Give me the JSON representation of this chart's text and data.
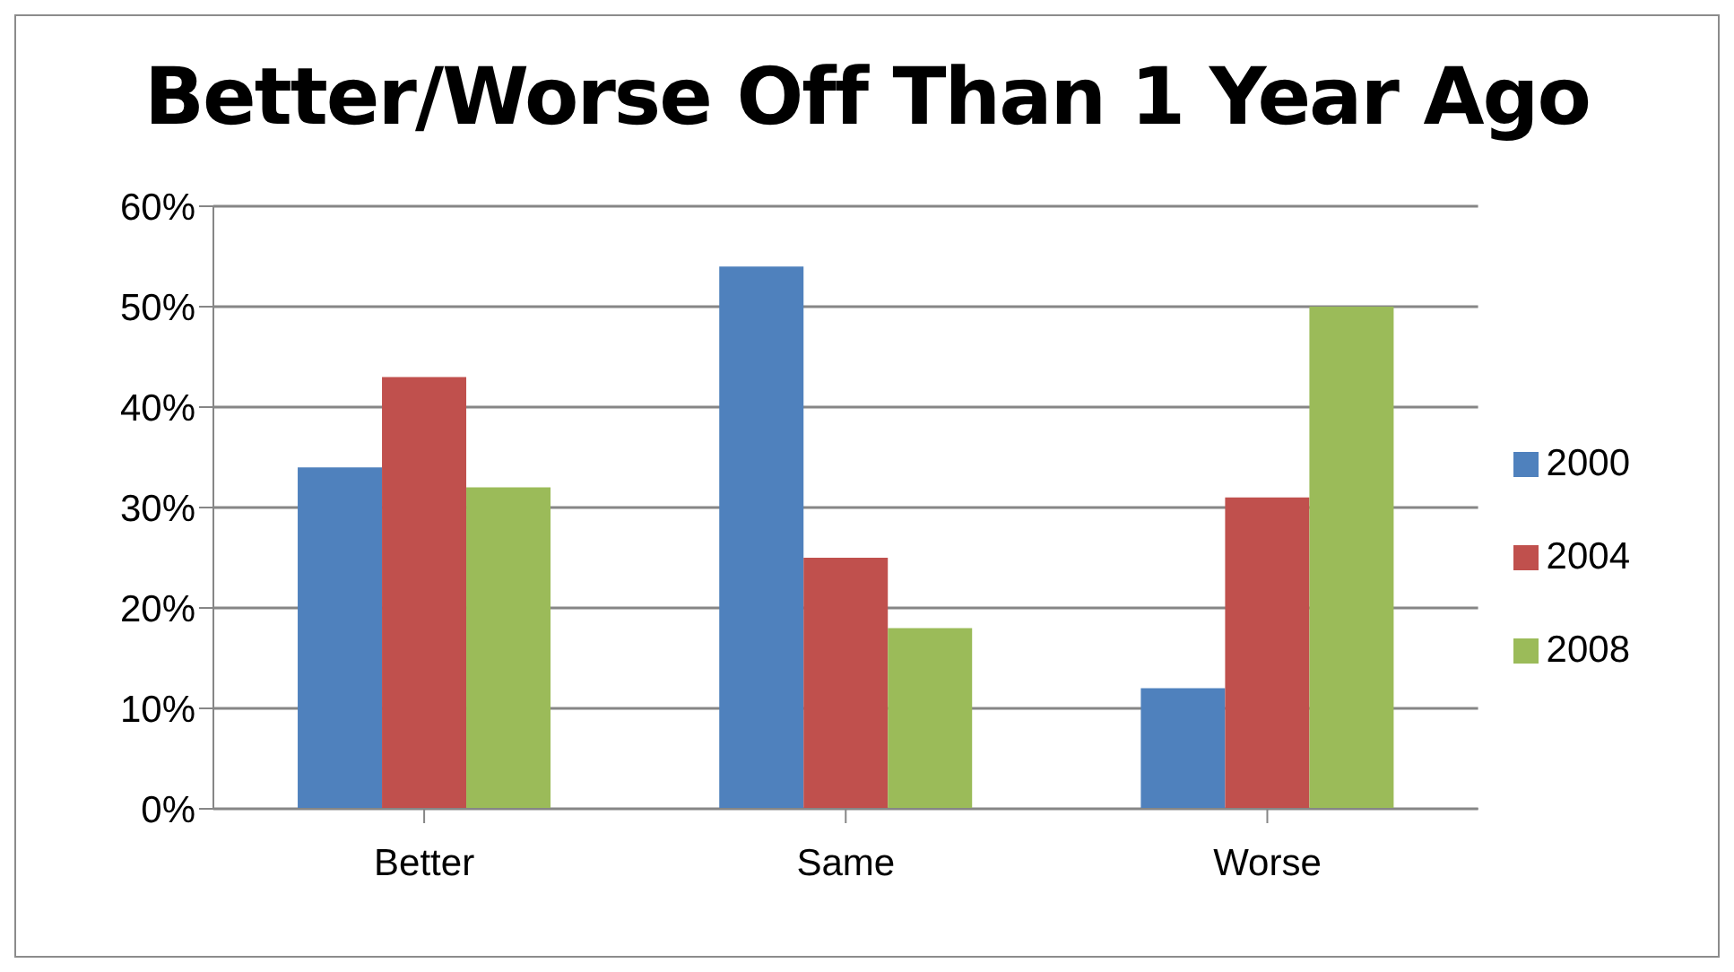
{
  "chart_data": {
    "type": "bar",
    "title": "Better/Worse Off Than 1 Year Ago",
    "categories": [
      "Better",
      "Same",
      "Worse"
    ],
    "series": [
      {
        "name": "2000",
        "color": "#4f81bd",
        "values": [
          34,
          54,
          12
        ]
      },
      {
        "name": "2004",
        "color": "#c0504d",
        "values": [
          43,
          25,
          31
        ]
      },
      {
        "name": "2008",
        "color": "#9bbb59",
        "values": [
          32,
          18,
          50
        ]
      }
    ],
    "ylim": [
      0,
      60
    ],
    "yticks": [
      {
        "value": 0,
        "label": "0%"
      },
      {
        "value": 10,
        "label": "10%"
      },
      {
        "value": 20,
        "label": "20%"
      },
      {
        "value": 30,
        "label": "30%"
      },
      {
        "value": 40,
        "label": "40%"
      },
      {
        "value": 50,
        "label": "50%"
      },
      {
        "value": 60,
        "label": "60%"
      }
    ],
    "grid": "y",
    "legend": "right"
  }
}
